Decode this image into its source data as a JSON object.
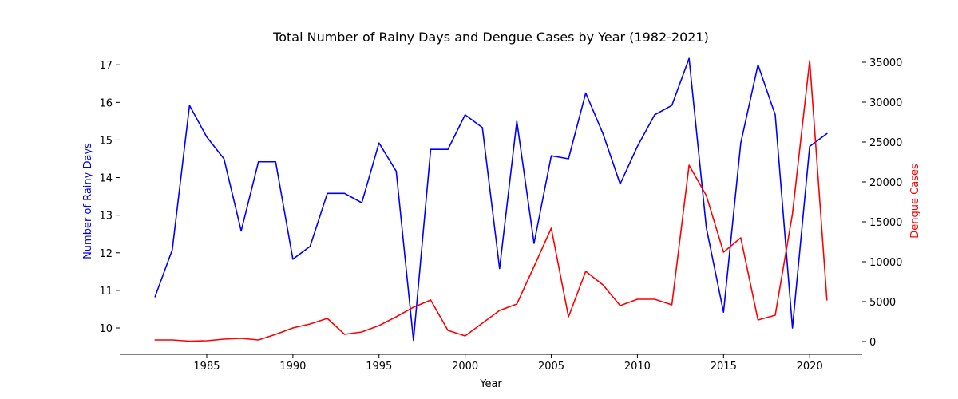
{
  "chart_data": {
    "type": "line",
    "title": "Total Number of Rainy Days and Dengue Cases by Year (1982-2021)",
    "xlabel": "Year",
    "ylabel_left": "Number of Rainy Days",
    "ylabel_right": "Dengue Cases",
    "xlim": [
      1979.95,
      2023.05
    ],
    "ylim_left": [
      9.3,
      17.45
    ],
    "ylim_right": [
      -1600,
      36800
    ],
    "x_ticks": [
      1985,
      1990,
      1995,
      2000,
      2005,
      2010,
      2015,
      2020
    ],
    "y_left_ticks": [
      10,
      11,
      12,
      13,
      14,
      15,
      16,
      17
    ],
    "y_right_ticks": [
      0,
      5000,
      10000,
      15000,
      20000,
      25000,
      30000,
      35000
    ],
    "grid": false,
    "x": [
      1982,
      1983,
      1984,
      1985,
      1986,
      1987,
      1988,
      1989,
      1990,
      1991,
      1992,
      1993,
      1994,
      1995,
      1996,
      1997,
      1998,
      1999,
      2000,
      2001,
      2002,
      2003,
      2004,
      2005,
      2006,
      2007,
      2008,
      2009,
      2010,
      2011,
      2012,
      2013,
      2014,
      2015,
      2016,
      2017,
      2018,
      2019,
      2020,
      2021
    ],
    "series": [
      {
        "axis": "left",
        "color": "#0000ff",
        "values": [
          10.83,
          12.08,
          15.92,
          15.08,
          14.5,
          12.58,
          14.42,
          14.42,
          11.83,
          12.17,
          13.58,
          13.58,
          13.33,
          14.92,
          14.17,
          9.67,
          14.75,
          14.75,
          15.67,
          15.33,
          11.58,
          15.5,
          12.25,
          14.58,
          14.5,
          16.25,
          15.17,
          13.83,
          14.83,
          15.67,
          15.92,
          17.17,
          12.67,
          10.42,
          14.92,
          17.0,
          15.67,
          10.0,
          14.83,
          15.17
        ]
      },
      {
        "axis": "right",
        "color": "#ff0000",
        "values": [
          200,
          200,
          50,
          100,
          300,
          400,
          200,
          900,
          1700,
          2200,
          2900,
          900,
          1200,
          2000,
          3100,
          4300,
          5200,
          1400,
          700,
          2300,
          3900,
          4700,
          9400,
          14200,
          3100,
          8800,
          7100,
          4500,
          5300,
          5300,
          4600,
          22100,
          18300,
          11200,
          13000,
          2700,
          3300,
          16000,
          35200,
          5200
        ]
      }
    ]
  }
}
